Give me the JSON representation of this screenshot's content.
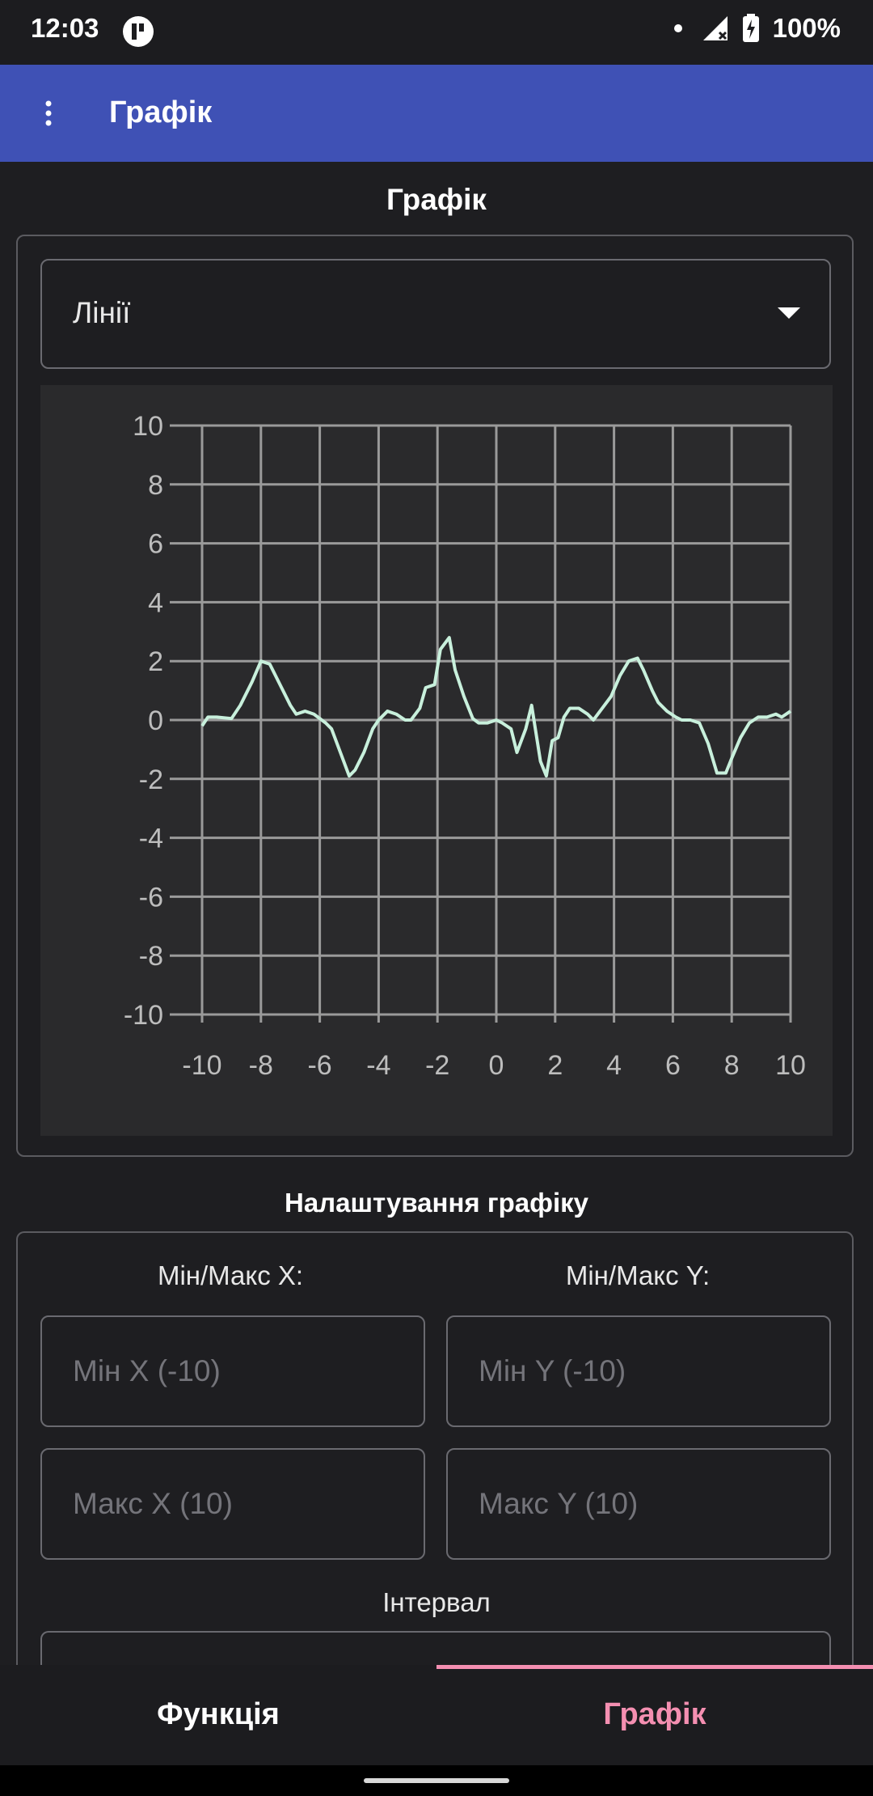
{
  "status_bar": {
    "time": "12:03",
    "battery": "100%"
  },
  "app_bar": {
    "title": "Графік"
  },
  "chart_section": {
    "title": "Графік"
  },
  "dropdown": {
    "selected": "Лінії"
  },
  "chart_data": {
    "type": "line",
    "title": "",
    "xlabel": "",
    "ylabel": "",
    "xlim": [
      -10,
      10
    ],
    "ylim": [
      -10,
      10
    ],
    "x_ticks": [
      -10,
      -8,
      -6,
      -4,
      -2,
      0,
      2,
      4,
      6,
      8,
      10
    ],
    "y_ticks": [
      -10,
      -8,
      -6,
      -4,
      -2,
      0,
      2,
      4,
      6,
      8,
      10
    ],
    "grid": true,
    "series": [
      {
        "color": "#c8f0dc",
        "x": [
          -10,
          -9.8,
          -9.5,
          -9,
          -8.7,
          -8.3,
          -8,
          -7.7,
          -7.3,
          -7,
          -6.8,
          -6.5,
          -6.2,
          -5.8,
          -5.6,
          -5.3,
          -5,
          -4.8,
          -4.5,
          -4.2,
          -4,
          -3.7,
          -3.4,
          -3.1,
          -2.9,
          -2.6,
          -2.4,
          -2.1,
          -1.9,
          -1.6,
          -1.4,
          -1.1,
          -0.8,
          -0.6,
          -0.3,
          0,
          0.2,
          0.5,
          0.7,
          1.0,
          1.2,
          1.5,
          1.7,
          1.9,
          2.1,
          2.3,
          2.5,
          2.8,
          3.1,
          3.3,
          3.6,
          3.9,
          4.2,
          4.5,
          4.8,
          5.0,
          5.3,
          5.5,
          5.8,
          6.1,
          6.3,
          6.6,
          6.9,
          7.2,
          7.5,
          7.8,
          8.0,
          8.3,
          8.6,
          8.9,
          9.2,
          9.5,
          9.7,
          10
        ],
        "y": [
          -0.2,
          0.1,
          0.1,
          0.05,
          0.5,
          1.3,
          2.0,
          1.9,
          1.1,
          0.5,
          0.2,
          0.3,
          0.2,
          -0.1,
          -0.3,
          -1.1,
          -1.9,
          -1.7,
          -1.1,
          -0.3,
          0.0,
          0.3,
          0.2,
          0.0,
          0.0,
          0.4,
          1.1,
          1.2,
          2.4,
          2.8,
          1.7,
          0.8,
          0.05,
          -0.1,
          -0.1,
          0.0,
          -0.1,
          -0.3,
          -1.1,
          -0.3,
          0.5,
          -1.4,
          -1.9,
          -0.7,
          -0.6,
          0.1,
          0.4,
          0.4,
          0.2,
          0.0,
          0.4,
          0.8,
          1.5,
          2.0,
          2.1,
          1.7,
          1.0,
          0.6,
          0.3,
          0.1,
          0.0,
          0.0,
          -0.1,
          -0.8,
          -1.8,
          -1.8,
          -1.3,
          -0.6,
          -0.1,
          0.1,
          0.1,
          0.2,
          0.1,
          0.3
        ]
      }
    ]
  },
  "settings": {
    "title": "Налаштування графіку",
    "minmax_x_label": "Мін/Макс X:",
    "minmax_y_label": "Мін/Макс Y:",
    "min_x_placeholder": "Мін X (-10)",
    "max_x_placeholder": "Макс X (10)",
    "min_y_placeholder": "Мін Y (-10)",
    "max_y_placeholder": "Макс Y (10)",
    "interval_label": "Інтервал"
  },
  "bottom_nav": {
    "tabs": [
      {
        "label": "Функція",
        "color": "#ffffff"
      },
      {
        "label": "Графік",
        "color": "#f48fb1"
      }
    ]
  }
}
